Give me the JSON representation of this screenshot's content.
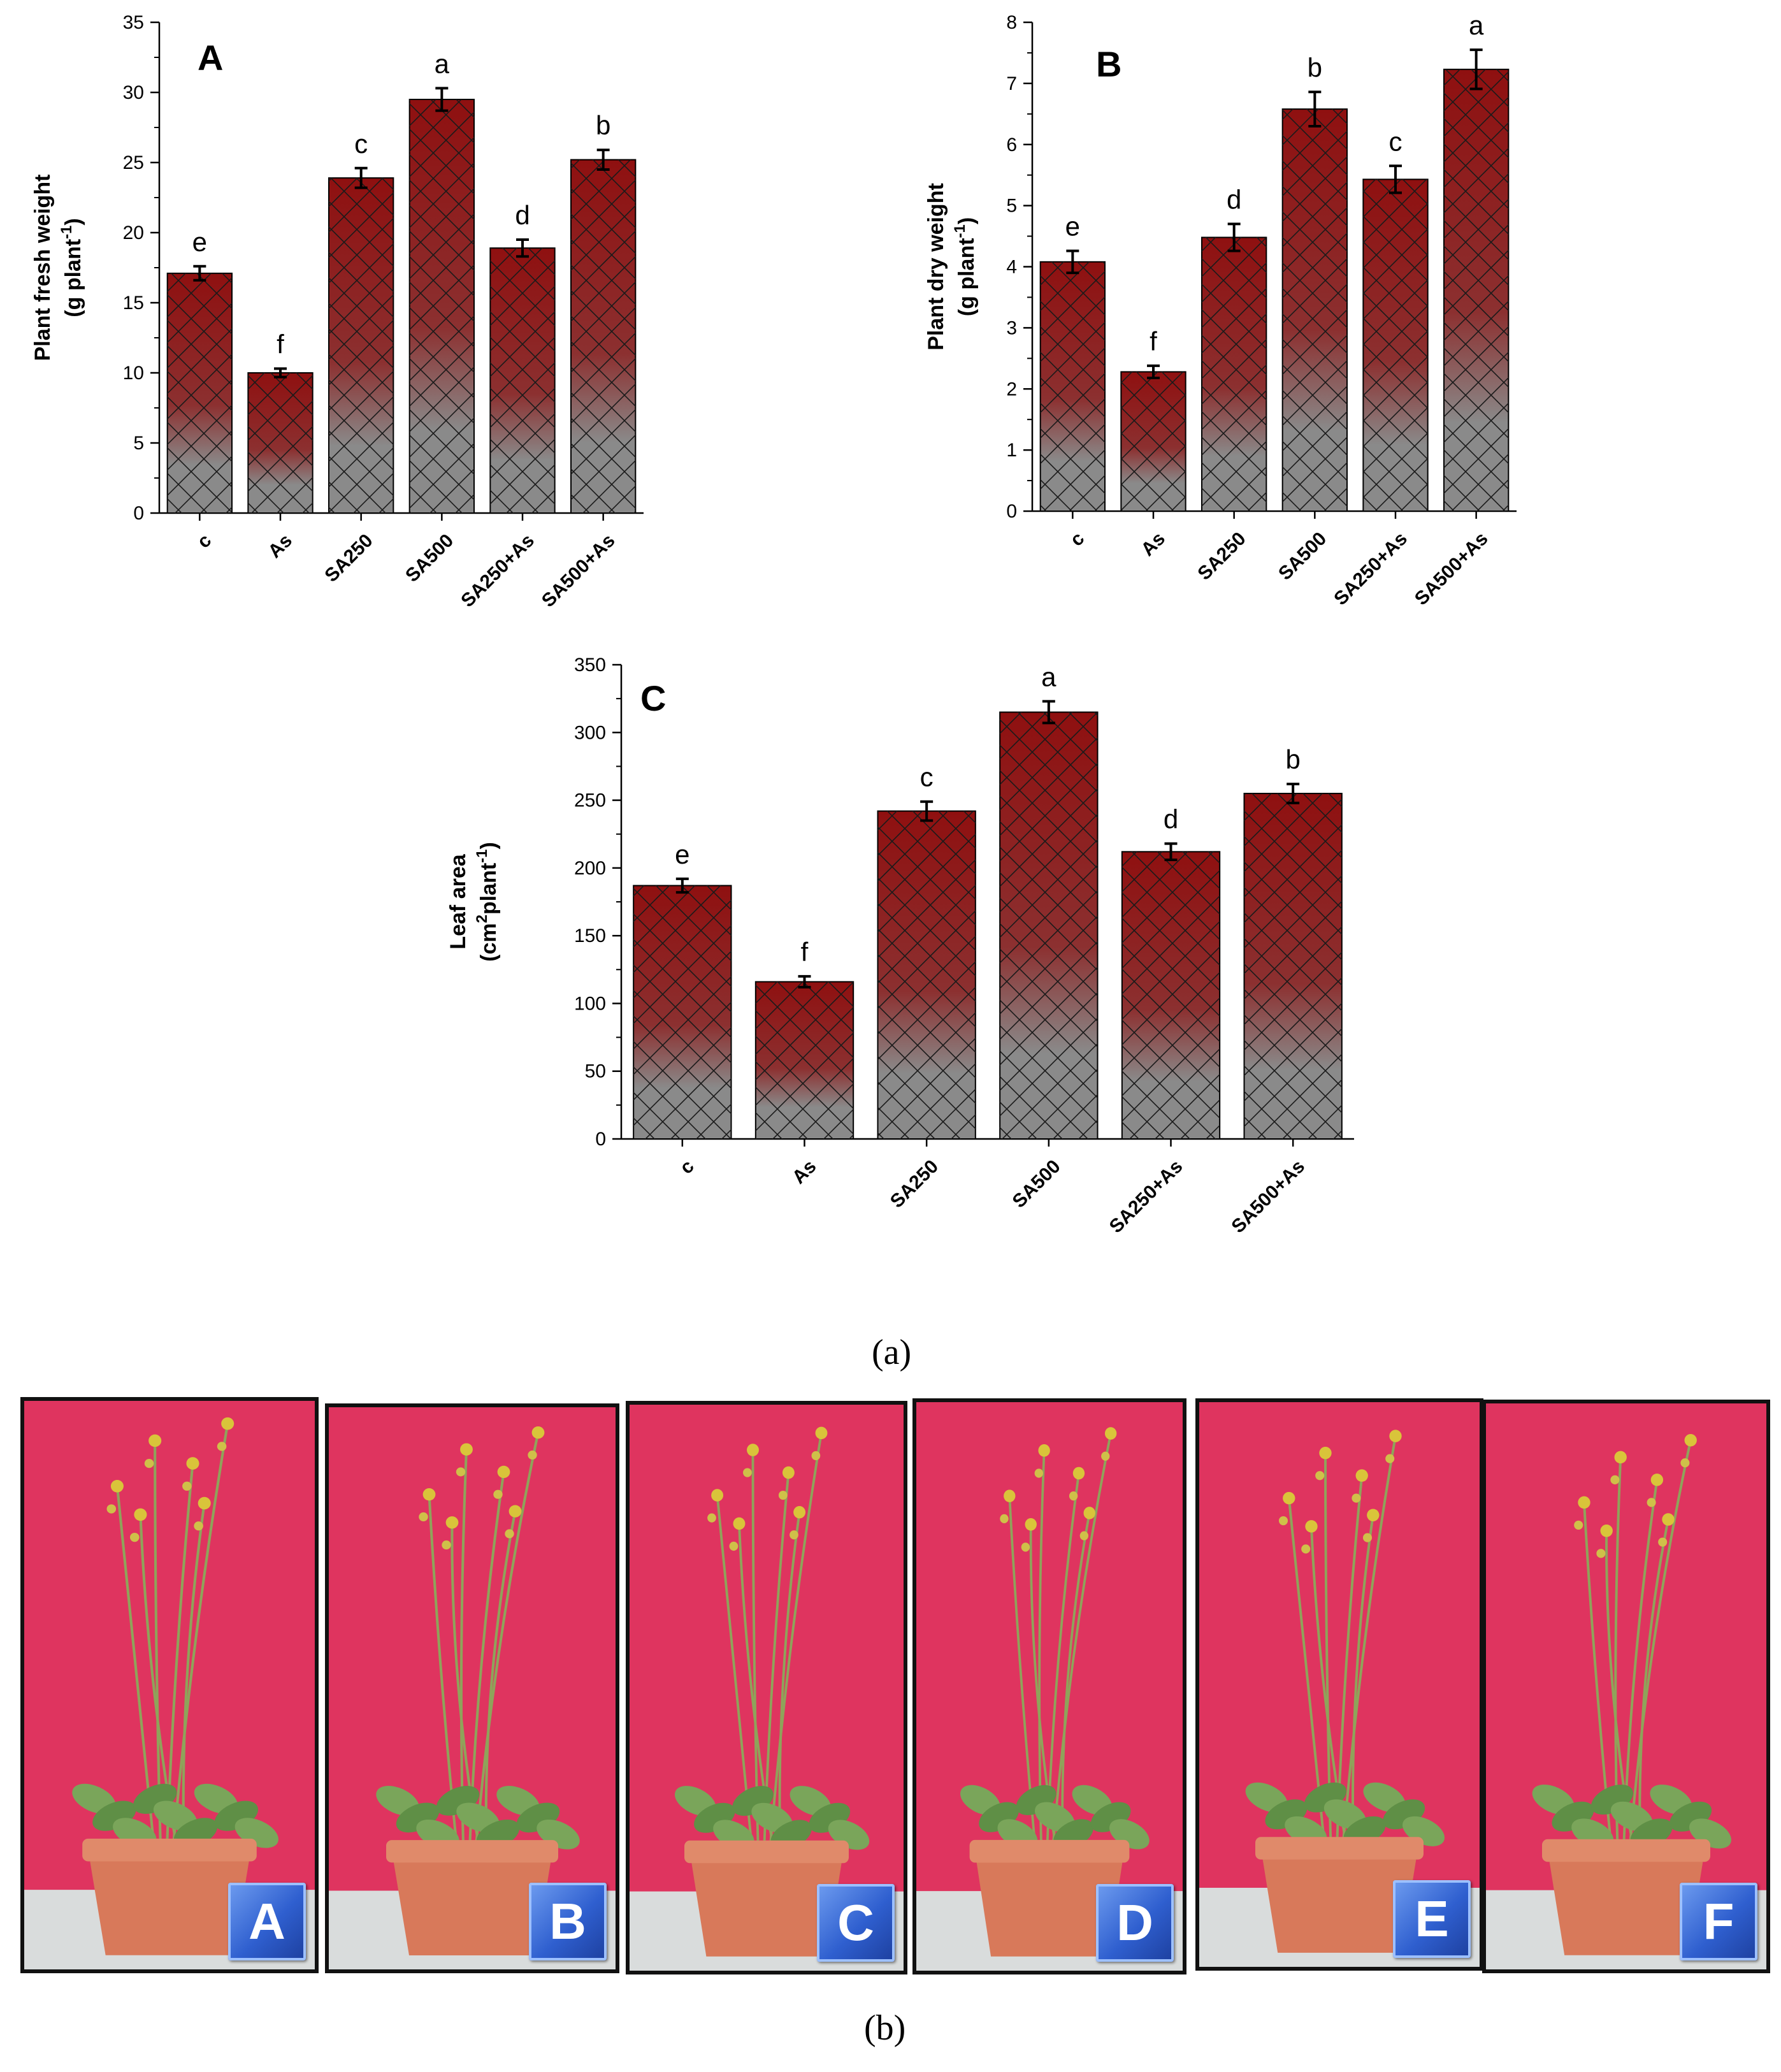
{
  "chart_data": [
    {
      "id": "A",
      "type": "bar",
      "panel_label": "A",
      "ylabel_line1": "Plant fresh weight",
      "ylabel_line2_pre": "(g plant",
      "ylabel_sup": "-1",
      "ylabel_line2_post": ")",
      "categories": [
        "c",
        "As",
        "SA250",
        "SA500",
        "SA250+As",
        "SA500+As"
      ],
      "values": [
        17.1,
        10.0,
        23.9,
        29.5,
        18.9,
        25.2
      ],
      "errors": [
        0.5,
        0.3,
        0.7,
        0.8,
        0.6,
        0.7
      ],
      "letters": [
        "e",
        "f",
        "c",
        "a",
        "d",
        "b"
      ],
      "ylim": [
        0,
        35
      ],
      "yticks": [
        0,
        5,
        10,
        15,
        20,
        25,
        30,
        35
      ]
    },
    {
      "id": "B",
      "type": "bar",
      "panel_label": "B",
      "ylabel_line1": "Plant dry weight",
      "ylabel_line2_pre": "(g plant",
      "ylabel_sup": "-1",
      "ylabel_line2_post": ")",
      "categories": [
        "c",
        "As",
        "SA250",
        "SA500",
        "SA250+As",
        "SA500+As"
      ],
      "values": [
        4.08,
        2.28,
        4.48,
        6.58,
        5.43,
        7.23
      ],
      "errors": [
        0.18,
        0.1,
        0.22,
        0.28,
        0.22,
        0.32
      ],
      "letters": [
        "e",
        "f",
        "d",
        "b",
        "c",
        "a"
      ],
      "ylim": [
        0,
        8
      ],
      "yticks": [
        0,
        1,
        2,
        3,
        4,
        5,
        6,
        7,
        8
      ]
    },
    {
      "id": "C",
      "type": "bar",
      "panel_label": "C",
      "ylabel_line1": "Leaf area",
      "ylabel_line2_pre": "(cm",
      "ylabel_sup": "2",
      "ylabel_line2_mid": "plant",
      "ylabel_sup2": "-1",
      "ylabel_line2_post": ")",
      "categories": [
        "c",
        "As",
        "SA250",
        "SA500",
        "SA250+As",
        "SA500+As"
      ],
      "values": [
        187,
        116,
        242,
        315,
        212,
        255
      ],
      "errors": [
        5,
        4,
        7,
        8,
        6,
        7
      ],
      "letters": [
        "e",
        "f",
        "c",
        "a",
        "d",
        "b"
      ],
      "ylim": [
        0,
        350
      ],
      "yticks": [
        0,
        50,
        100,
        150,
        200,
        250,
        300,
        350
      ]
    }
  ],
  "captions": {
    "a": "(a)",
    "b": "(b)"
  },
  "photos": [
    {
      "label": "A"
    },
    {
      "label": "B"
    },
    {
      "label": "C"
    },
    {
      "label": "D"
    },
    {
      "label": "E"
    },
    {
      "label": "F"
    }
  ],
  "colors": {
    "bar_top": "#8f1010",
    "bar_bottom": "#8a8a8a",
    "backdrop": "#d8204a",
    "pot": "#d8795a"
  }
}
